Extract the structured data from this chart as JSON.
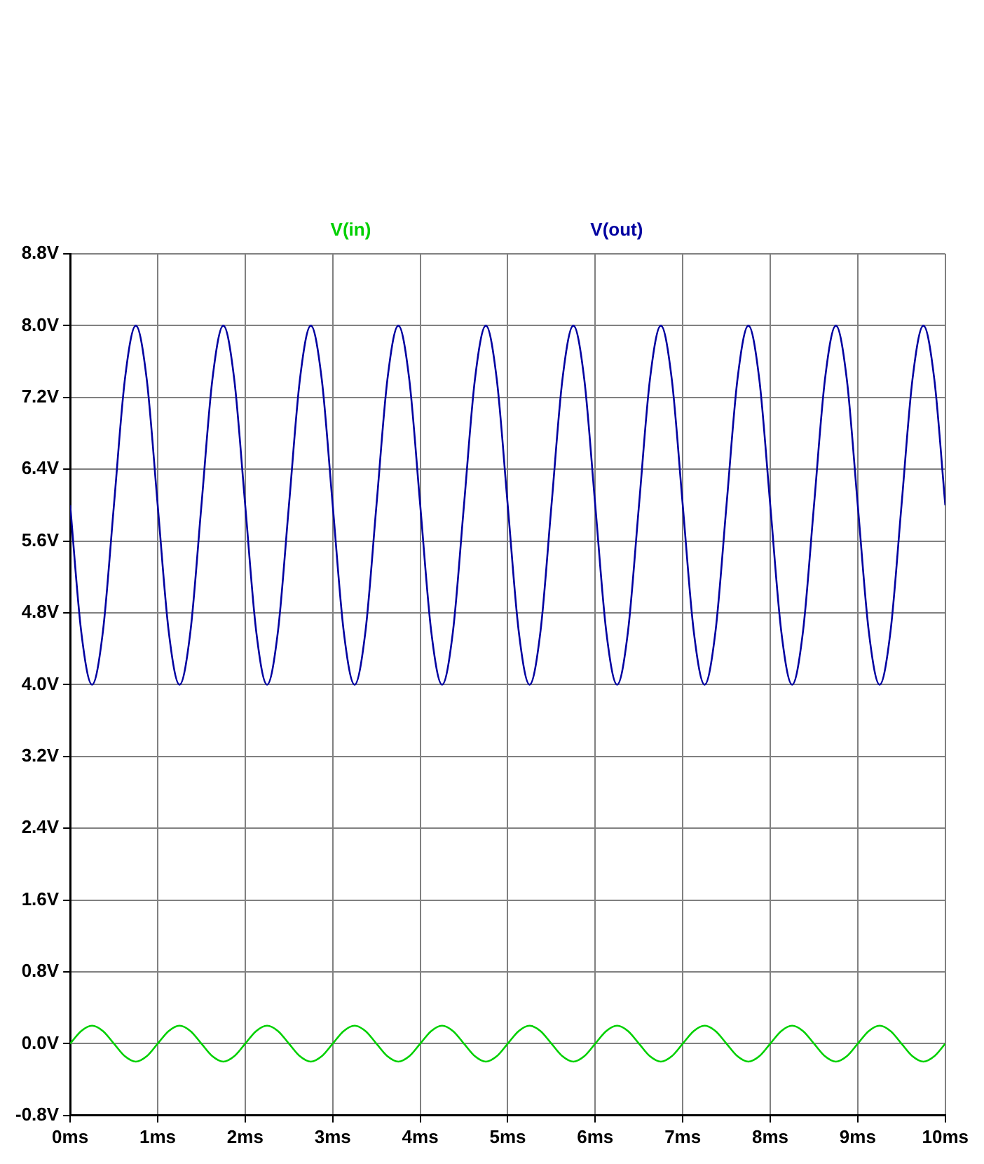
{
  "chart_data": {
    "type": "line",
    "x": [
      0,
      0.125,
      0.25,
      0.375,
      0.5,
      0.625,
      0.75,
      0.875,
      1,
      1.125,
      1.25,
      1.375,
      1.5,
      1.625,
      1.75,
      1.875,
      2,
      2.125,
      2.25,
      2.375,
      2.5,
      2.625,
      2.75,
      2.875,
      3,
      3.125,
      3.25,
      3.375,
      3.5,
      3.625,
      3.75,
      3.875,
      4,
      4.125,
      4.25,
      4.375,
      4.5,
      4.625,
      4.75,
      4.875,
      5,
      5.125,
      5.25,
      5.375,
      5.5,
      5.625,
      5.75,
      5.875,
      6,
      6.125,
      6.25,
      6.375,
      6.5,
      6.625,
      6.75,
      6.875,
      7,
      7.125,
      7.25,
      7.375,
      7.5,
      7.625,
      7.75,
      7.875,
      8,
      8.125,
      8.25,
      8.375,
      8.5,
      8.625,
      8.75,
      8.875,
      9,
      9.125,
      9.25,
      9.375,
      9.5,
      9.625,
      9.75,
      9.875,
      10
    ],
    "series": [
      {
        "name": "V(in)",
        "color": "#00d000",
        "values": [
          0,
          0.14,
          0.2,
          0.14,
          0,
          -0.14,
          -0.2,
          -0.14,
          0,
          0.14,
          0.2,
          0.14,
          0,
          -0.14,
          -0.2,
          -0.14,
          0,
          0.14,
          0.2,
          0.14,
          0,
          -0.14,
          -0.2,
          -0.14,
          0,
          0.14,
          0.2,
          0.14,
          0,
          -0.14,
          -0.2,
          -0.14,
          0,
          0.14,
          0.2,
          0.14,
          0,
          -0.14,
          -0.2,
          -0.14,
          0,
          0.14,
          0.2,
          0.14,
          0,
          -0.14,
          -0.2,
          -0.14,
          0,
          0.14,
          0.2,
          0.14,
          0,
          -0.14,
          -0.2,
          -0.14,
          0,
          0.14,
          0.2,
          0.14,
          0,
          -0.14,
          -0.2,
          -0.14,
          0,
          0.14,
          0.2,
          0.14,
          0,
          -0.14,
          -0.2,
          -0.14,
          0,
          0.14,
          0.2,
          0.14,
          0,
          -0.14,
          -0.2,
          -0.14,
          0
        ]
      },
      {
        "name": "V(out)",
        "color": "#0000a0",
        "values": [
          6,
          4.6,
          4,
          4.6,
          6,
          7.4,
          8,
          7.4,
          6,
          4.6,
          4,
          4.6,
          6,
          7.4,
          8,
          7.4,
          6,
          4.6,
          4,
          4.6,
          6,
          7.4,
          8,
          7.4,
          6,
          4.6,
          4,
          4.6,
          6,
          7.4,
          8,
          7.4,
          6,
          4.6,
          4,
          4.6,
          6,
          7.4,
          8,
          7.4,
          6,
          4.6,
          4,
          4.6,
          6,
          7.4,
          8,
          7.4,
          6,
          4.6,
          4,
          4.6,
          6,
          7.4,
          8,
          7.4,
          6,
          4.6,
          4,
          4.6,
          6,
          7.4,
          8,
          7.4,
          6,
          4.6,
          4,
          4.6,
          6,
          7.4,
          8,
          7.4,
          6,
          4.6,
          4,
          4.6,
          6,
          7.4,
          8,
          7.4,
          6
        ]
      }
    ],
    "xlim": [
      0,
      10
    ],
    "xticks": [
      {
        "value": 0,
        "label": "0ms"
      },
      {
        "value": 1,
        "label": "1ms"
      },
      {
        "value": 2,
        "label": "2ms"
      },
      {
        "value": 3,
        "label": "3ms"
      },
      {
        "value": 4,
        "label": "4ms"
      },
      {
        "value": 5,
        "label": "5ms"
      },
      {
        "value": 6,
        "label": "6ms"
      },
      {
        "value": 7,
        "label": "7ms"
      },
      {
        "value": 8,
        "label": "8ms"
      },
      {
        "value": 9,
        "label": "9ms"
      },
      {
        "value": 10,
        "label": "10ms"
      }
    ],
    "ylim": [
      -0.8,
      8.8
    ],
    "yticks": [
      {
        "value": -0.8,
        "label": "-0.8V"
      },
      {
        "value": 0,
        "label": "0.0V"
      },
      {
        "value": 0.8,
        "label": "0.8V"
      },
      {
        "value": 1.6,
        "label": "1.6V"
      },
      {
        "value": 2.4,
        "label": "2.4V"
      },
      {
        "value": 3.2,
        "label": "3.2V"
      },
      {
        "value": 4,
        "label": "4.0V"
      },
      {
        "value": 4.8,
        "label": "4.8V"
      },
      {
        "value": 5.6,
        "label": "5.6V"
      },
      {
        "value": 6.4,
        "label": "6.4V"
      },
      {
        "value": 7.2,
        "label": "7.2V"
      },
      {
        "value": 8,
        "label": "8.0V"
      },
      {
        "value": 8.8,
        "label": "8.8V"
      }
    ],
    "grid": true,
    "legend": "top"
  }
}
